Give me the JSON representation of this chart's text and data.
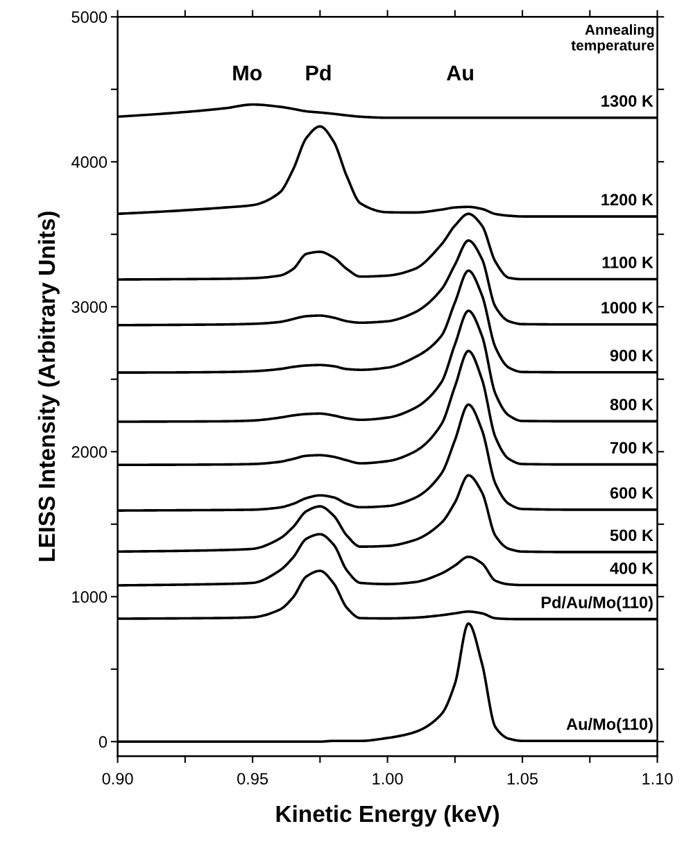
{
  "chart_data": {
    "type": "line",
    "xlabel": "Kinetic Energy (keV)",
    "ylabel": "LEISS Intensity (Arbitrary Units)",
    "x": [
      0.9,
      0.92,
      0.94,
      0.95,
      0.96,
      0.965,
      0.97,
      0.975,
      0.98,
      0.985,
      0.99,
      1.0,
      1.01,
      1.02,
      1.025,
      1.03,
      1.035,
      1.04,
      1.045,
      1.05,
      1.07,
      1.1
    ],
    "series": [
      {
        "name": "Au/Mo(110)",
        "color": "#000000",
        "values": [
          0,
          0,
          0,
          0,
          0,
          0,
          0,
          0,
          5,
          5,
          5,
          25,
          65,
          190,
          400,
          815,
          540,
          100,
          20,
          5,
          5,
          5
        ]
      },
      {
        "name": "Pd/Au/Mo(110)",
        "color": "#000000",
        "values": [
          848,
          850,
          853,
          858,
          910,
          995,
          1140,
          1178,
          1093,
          922,
          852,
          850,
          855,
          872,
          885,
          897,
          885,
          851,
          846,
          845,
          845,
          845
        ]
      },
      {
        "name": "400 K",
        "color": "#000000",
        "values": [
          1078,
          1082,
          1088,
          1095,
          1180,
          1270,
          1400,
          1431,
          1360,
          1180,
          1095,
          1087,
          1100,
          1160,
          1215,
          1275,
          1230,
          1110,
          1085,
          1080,
          1080,
          1080
        ]
      },
      {
        "name": "500 K",
        "color": "#000000",
        "values": [
          1311,
          1315,
          1322,
          1330,
          1400,
          1480,
          1590,
          1623,
          1560,
          1420,
          1345,
          1350,
          1390,
          1510,
          1650,
          1837,
          1720,
          1420,
          1330,
          1311,
          1308,
          1308
        ]
      },
      {
        "name": "600 K",
        "color": "#000000",
        "values": [
          1594,
          1596,
          1598,
          1600,
          1615,
          1640,
          1680,
          1699,
          1685,
          1640,
          1617,
          1625,
          1680,
          1850,
          2080,
          2325,
          2150,
          1780,
          1640,
          1605,
          1600,
          1600
        ]
      },
      {
        "name": "700 K",
        "color": "#000000",
        "values": [
          1909,
          1910,
          1912,
          1915,
          1930,
          1950,
          1972,
          1976,
          1965,
          1940,
          1920,
          1935,
          2000,
          2190,
          2450,
          2695,
          2500,
          2100,
          1950,
          1915,
          1912,
          1912
        ]
      },
      {
        "name": "800 K",
        "color": "#000000",
        "values": [
          2207,
          2208,
          2210,
          2215,
          2235,
          2250,
          2260,
          2263,
          2250,
          2230,
          2220,
          2235,
          2300,
          2480,
          2740,
          2972,
          2800,
          2400,
          2250,
          2212,
          2210,
          2210
        ]
      },
      {
        "name": "900 K",
        "color": "#000000",
        "values": [
          2546,
          2547,
          2550,
          2555,
          2570,
          2585,
          2595,
          2598,
          2590,
          2570,
          2565,
          2580,
          2650,
          2800,
          3030,
          3249,
          3080,
          2720,
          2580,
          2550,
          2548,
          2548
        ]
      },
      {
        "name": "1000 K",
        "color": "#000000",
        "values": [
          2873,
          2875,
          2878,
          2882,
          2895,
          2915,
          2935,
          2939,
          2925,
          2900,
          2890,
          2900,
          2960,
          3120,
          3290,
          3457,
          3330,
          3000,
          2900,
          2880,
          2878,
          2878
        ]
      },
      {
        "name": "1100 K",
        "color": "#000000",
        "values": [
          3188,
          3190,
          3193,
          3197,
          3215,
          3260,
          3365,
          3379,
          3340,
          3260,
          3208,
          3215,
          3260,
          3430,
          3560,
          3641,
          3560,
          3311,
          3200,
          3190,
          3190,
          3190
        ]
      },
      {
        "name": "1200 K",
        "color": "#000000",
        "values": [
          3641,
          3660,
          3685,
          3701,
          3787,
          3946,
          4166,
          4244,
          4141,
          3897,
          3713,
          3652,
          3650,
          3670,
          3685,
          3689,
          3675,
          3640,
          3628,
          3623,
          3623,
          3623
        ]
      },
      {
        "name": "1300 K",
        "color": "#000000",
        "values": [
          4311,
          4336,
          4370,
          4395,
          4380,
          4365,
          4348,
          4340,
          4331,
          4320,
          4311,
          4304,
          4304,
          4304,
          4304,
          4304,
          4304,
          4304,
          4304,
          4304,
          4304,
          4304
        ]
      }
    ],
    "annotations": [
      "Annealing\ntemperature",
      "Mo",
      "Pd",
      "Au"
    ],
    "xlim": [
      0.9,
      1.1
    ],
    "xticks": [
      {
        "value": 0.9,
        "label": "0.90"
      },
      {
        "value": 0.925,
        "label": null
      },
      {
        "value": 0.95,
        "label": "0.95"
      },
      {
        "value": 0.975,
        "label": null
      },
      {
        "value": 1.0,
        "label": "1.00"
      },
      {
        "value": 1.025,
        "label": null
      },
      {
        "value": 1.05,
        "label": "1.05"
      },
      {
        "value": 1.075,
        "label": null
      },
      {
        "value": 1.1,
        "label": "1.10"
      }
    ],
    "ylim": [
      -100,
      5000
    ],
    "yticks": [
      0,
      {
        "value": 500,
        "label": null
      },
      1000,
      {
        "value": 1500,
        "label": null
      },
      2000,
      {
        "value": 2500,
        "label": null
      },
      3000,
      {
        "value": 3500,
        "label": null
      },
      4000,
      {
        "value": 4500,
        "label": null
      },
      5000
    ],
    "grid": false,
    "legend": "right",
    "marker": "none",
    "line_style": "solid"
  }
}
